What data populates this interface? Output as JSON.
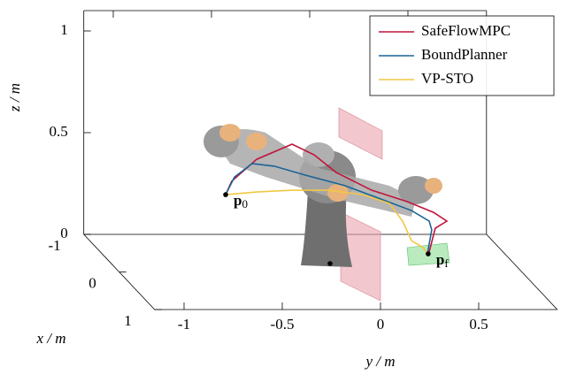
{
  "chart_data": {
    "type": "line3d",
    "xlabel": "x / m",
    "ylabel": "y / m",
    "zlabel": "z / m",
    "xlim": [
      -1,
      1
    ],
    "ylim": [
      -1.15,
      0.9
    ],
    "zlim": [
      0,
      1.1
    ],
    "xticks": [
      -1,
      0,
      1
    ],
    "yticks": [
      -1,
      -0.5,
      0,
      0.5
    ],
    "zticks": [
      0,
      0.5,
      1
    ],
    "legend": "upper right",
    "series": [
      {
        "name": "SafeFlowMPC",
        "color": "#c0143c",
        "x": [
          0,
          0,
          0,
          0,
          0,
          0,
          0,
          0,
          0,
          0,
          0,
          0
        ],
        "y": [
          -0.608,
          -0.577,
          -0.45,
          -0.27,
          -0.158,
          -0.045,
          0.135,
          0.315,
          0.45,
          0.518,
          0.459,
          0.428
        ],
        "z": [
          0.38,
          0.446,
          0.554,
          0.628,
          0.576,
          0.489,
          0.402,
          0.346,
          0.293,
          0.25,
          0.215,
          0.098
        ]
      },
      {
        "name": "BoundPlanner",
        "color": "#1a6496",
        "x": [
          0,
          0,
          0,
          0,
          0,
          0,
          0,
          0,
          0,
          0,
          0
        ],
        "y": [
          -0.608,
          -0.563,
          -0.473,
          -0.36,
          -0.203,
          0,
          0.18,
          0.338,
          0.428,
          0.441,
          0.419
        ],
        "z": [
          0.38,
          0.467,
          0.533,
          0.52,
          0.476,
          0.424,
          0.359,
          0.302,
          0.25,
          0.207,
          0.089
        ]
      },
      {
        "name": "VP-STO",
        "color": "#f2c744",
        "x": [
          0,
          0,
          0,
          0,
          0,
          0,
          0,
          0,
          0,
          0
        ],
        "y": [
          -0.608,
          -0.45,
          -0.27,
          -0.09,
          0.09,
          0.225,
          0.293,
          0.338,
          0.396,
          0.423
        ],
        "z": [
          0.38,
          0.393,
          0.402,
          0.402,
          0.38,
          0.337,
          0.25,
          0.154,
          0.12,
          0.089
        ]
      }
    ],
    "annotations": [
      {
        "text": "p",
        "sub": "0",
        "x": 0,
        "y": -0.608,
        "z": 0.38
      },
      {
        "text": "p",
        "sub": "f",
        "x": 0,
        "y": 0.423,
        "z": 0.089
      }
    ]
  }
}
